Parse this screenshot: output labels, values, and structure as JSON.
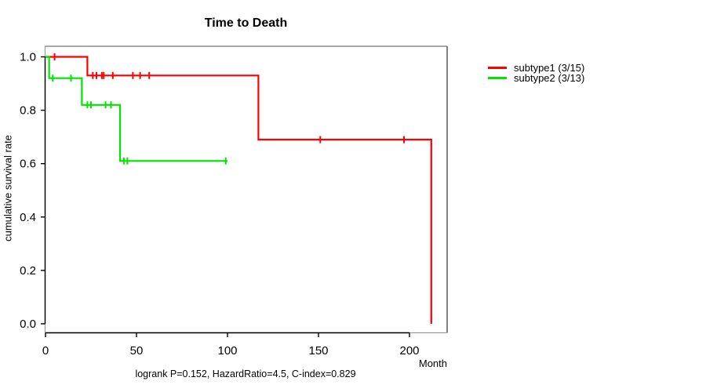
{
  "chart_data": {
    "type": "line",
    "chart_kind": "kaplan-meier-step",
    "title": "Time to Death",
    "xlabel": "Month",
    "ylabel": "cumulative survival rate",
    "footer": "logrank P=0.152, HazardRatio=4.5, C-index=0.829",
    "xlim": [
      0,
      220
    ],
    "ylim": [
      0.0,
      1.0
    ],
    "x_ticks": [
      0,
      50,
      100,
      150,
      200
    ],
    "y_ticks": [
      "0.0",
      "0.2",
      "0.4",
      "0.6",
      "0.8",
      "1.0"
    ],
    "grid": false,
    "legend_position": "outside-right-top",
    "series": [
      {
        "name": "subtype1 (3/15)",
        "color": "#FF0000",
        "steps": [
          [
            0,
            1.0
          ],
          [
            23,
            1.0
          ],
          [
            23,
            0.93
          ],
          [
            117,
            0.93
          ],
          [
            117,
            0.69
          ],
          [
            212,
            0.69
          ],
          [
            212,
            0.0
          ]
        ],
        "censor_marks": [
          [
            5,
            1.0
          ],
          [
            26,
            0.93
          ],
          [
            28,
            0.93
          ],
          [
            31,
            0.93
          ],
          [
            32,
            0.93
          ],
          [
            37,
            0.93
          ],
          [
            48,
            0.93
          ],
          [
            52,
            0.93
          ],
          [
            57,
            0.93
          ],
          [
            151,
            0.69
          ],
          [
            197,
            0.69
          ]
        ]
      },
      {
        "name": "subtype2 (3/13)",
        "color": "#00E400",
        "steps": [
          [
            0,
            1.0
          ],
          [
            2,
            1.0
          ],
          [
            2,
            0.92
          ],
          [
            20,
            0.92
          ],
          [
            20,
            0.82
          ],
          [
            41,
            0.82
          ],
          [
            41,
            0.61
          ],
          [
            100,
            0.61
          ]
        ],
        "censor_marks": [
          [
            4,
            0.92
          ],
          [
            14,
            0.92
          ],
          [
            23,
            0.82
          ],
          [
            25,
            0.82
          ],
          [
            33,
            0.82
          ],
          [
            36,
            0.82
          ],
          [
            43,
            0.61
          ],
          [
            45,
            0.61
          ],
          [
            99,
            0.61
          ]
        ]
      }
    ]
  }
}
